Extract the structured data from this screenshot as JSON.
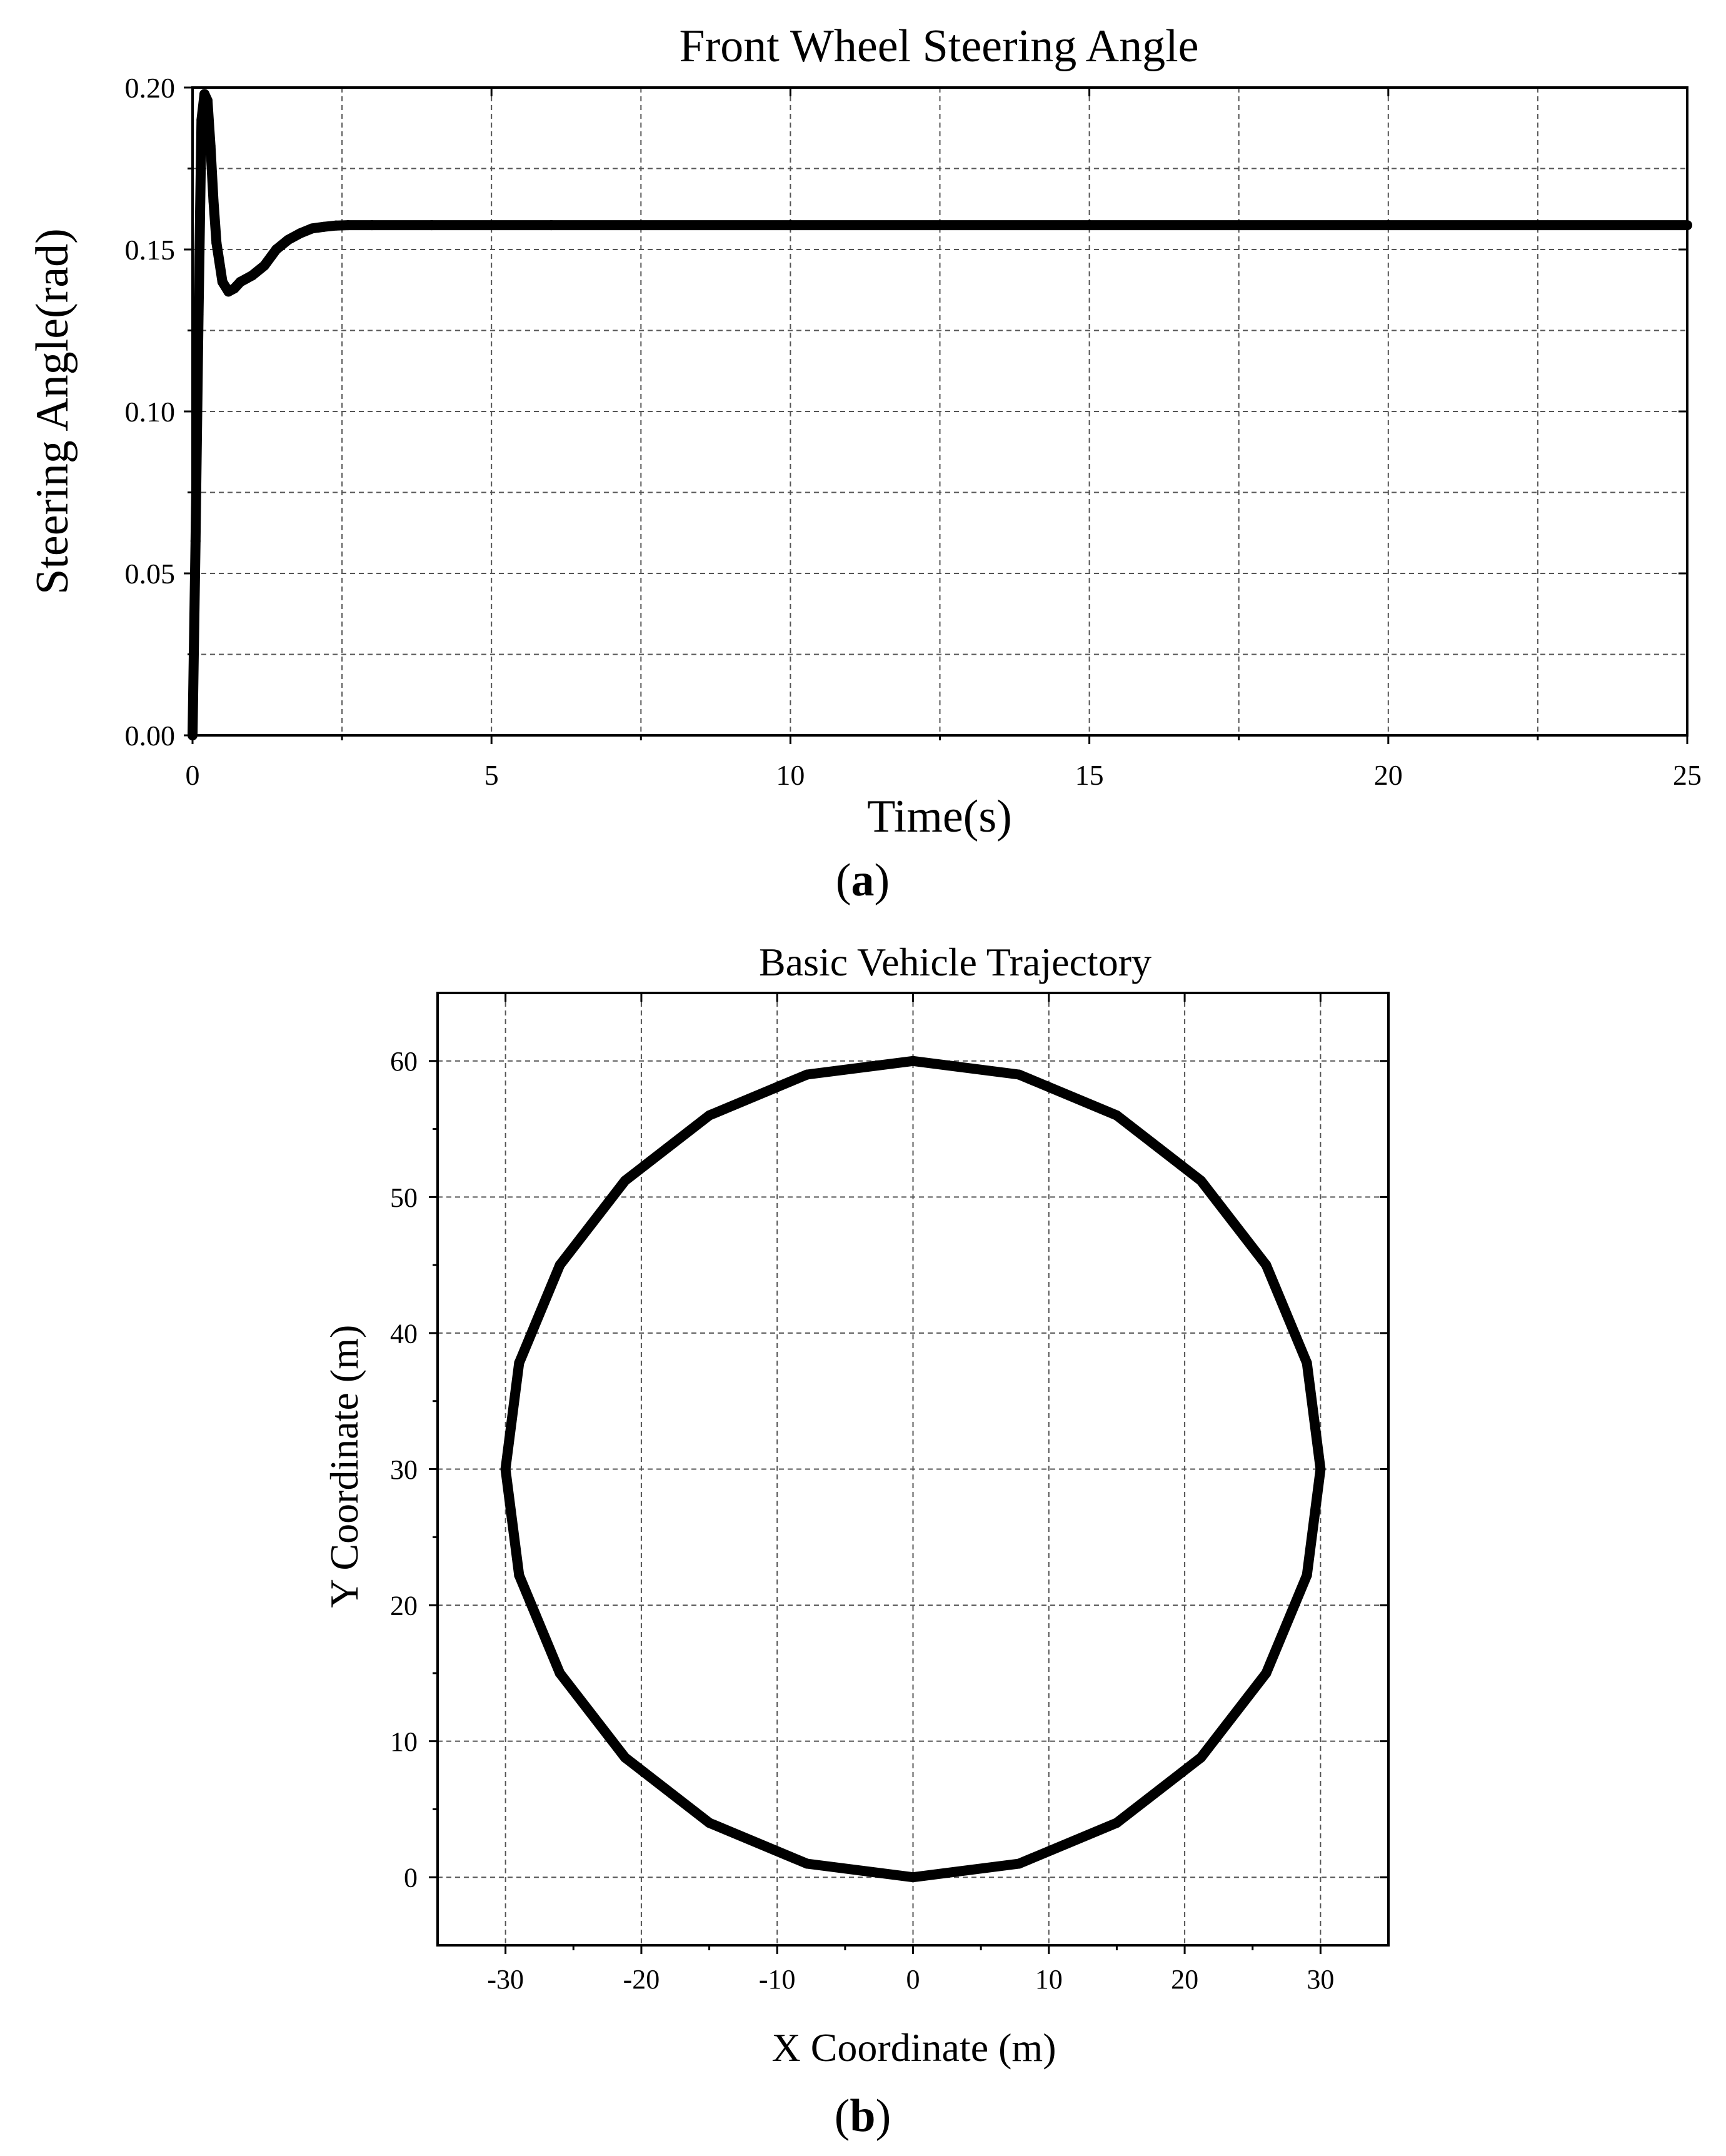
{
  "chart_data": [
    {
      "type": "line",
      "title": "Front Wheel Steering Angle",
      "xlabel": "Time(s)",
      "ylabel": "Steering Angle(rad)",
      "xlim": [
        0,
        25
      ],
      "ylim": [
        0,
        0.2
      ],
      "xticks": [
        0,
        5,
        10,
        15,
        20,
        25
      ],
      "xtick_labels": [
        "0",
        "5",
        "10",
        "15",
        "20",
        "25"
      ],
      "yticks": [
        0,
        0.05,
        0.1,
        0.15,
        0.2
      ],
      "ytick_labels": [
        "0.00",
        "0.05",
        "0.10",
        "0.15",
        "0.20"
      ],
      "grid": true,
      "line_color": "#000000",
      "series": [
        {
          "x": [
            0,
            0.05,
            0.1,
            0.15,
            0.2,
            0.25,
            0.3,
            0.35,
            0.4,
            0.5,
            0.6,
            0.7,
            0.8,
            0.9,
            1.0,
            1.2,
            1.4,
            1.6,
            1.8,
            2.0,
            2.2,
            2.4,
            2.6,
            3.0,
            4.0,
            6.0,
            10.0,
            15.0,
            20.0,
            25.0
          ],
          "y": [
            0.0,
            0.06,
            0.13,
            0.19,
            0.198,
            0.196,
            0.182,
            0.165,
            0.152,
            0.14,
            0.137,
            0.138,
            0.14,
            0.141,
            0.142,
            0.145,
            0.15,
            0.153,
            0.155,
            0.1565,
            0.157,
            0.1574,
            0.1575,
            0.1575,
            0.1575,
            0.1575,
            0.1575,
            0.1575,
            0.1575,
            0.1575
          ]
        }
      ],
      "caption": "a"
    },
    {
      "type": "line",
      "title": "Basic Vehicle Trajectory",
      "xlabel": "X Coordinate (m)",
      "ylabel": "Y Coordinate (m)",
      "xlim": [
        -35,
        35
      ],
      "ylim": [
        -5,
        65
      ],
      "xticks": [
        -30,
        -20,
        -10,
        0,
        10,
        20,
        30
      ],
      "xtick_labels": [
        "-30",
        "-20",
        "-10",
        "0",
        "10",
        "20",
        "30"
      ],
      "yticks": [
        0,
        10,
        20,
        30,
        40,
        50,
        60
      ],
      "ytick_labels": [
        "0",
        "10",
        "20",
        "30",
        "40",
        "50",
        "60"
      ],
      "grid": true,
      "line_color": "#000000",
      "series": [
        {
          "x": [
            0.0,
            7.8,
            15.0,
            21.2,
            26.0,
            29.0,
            30.0,
            29.0,
            26.0,
            21.2,
            15.0,
            7.8,
            0.0,
            -7.8,
            -15.0,
            -21.2,
            -26.0,
            -29.0,
            -30.0,
            -29.0,
            -26.0,
            -21.2,
            -15.0,
            -7.8,
            0.0
          ],
          "y": [
            0.0,
            1.0,
            4.0,
            8.8,
            15.0,
            22.2,
            30.0,
            37.8,
            45.0,
            51.2,
            56.0,
            59.0,
            60.0,
            59.0,
            56.0,
            51.2,
            45.0,
            37.8,
            30.0,
            22.2,
            15.0,
            8.8,
            4.0,
            1.0,
            0.0
          ]
        }
      ],
      "caption": "b"
    }
  ]
}
